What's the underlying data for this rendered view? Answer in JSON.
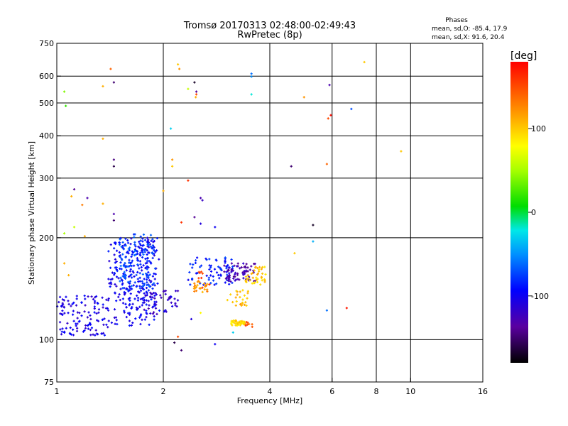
{
  "chart_data": {
    "type": "scatter",
    "title": "Tromsø 20170313 02:48:00-02:49:43",
    "subtitle": "RwPretec (8p)",
    "xlabel": "Frequency [MHz]",
    "ylabel": "Stationary phase Virtual Height [km]",
    "x_scale": "log",
    "y_scale": "log",
    "xlim": [
      1,
      16
    ],
    "ylim": [
      75,
      750
    ],
    "x_ticks": [
      1,
      2,
      4,
      6,
      8,
      10,
      16
    ],
    "x_tick_labels": [
      "1",
      "2",
      "4",
      "6",
      "8",
      "10",
      "16"
    ],
    "x_grid_lines": [
      2,
      4,
      6,
      8,
      10
    ],
    "y_ticks": [
      75,
      100,
      200,
      300,
      400,
      500,
      600,
      750
    ],
    "y_tick_labels": [
      "75",
      "100",
      "200",
      "300",
      "400",
      "500",
      "600",
      "750"
    ],
    "y_grid_lines": [
      100,
      200,
      300,
      400,
      500,
      600
    ],
    "grid": true,
    "legend": {
      "title": "Phases",
      "lines": [
        "mean, sd,O: -85.4, 17.9",
        "mean, sd,X:  91.6, 20.4"
      ],
      "position": "top-right"
    },
    "colorbar": {
      "label": "[deg]",
      "range": [
        -180,
        180
      ],
      "ticks": [
        100,
        0,
        -100
      ],
      "tick_labels": [
        "100",
        "0",
        "-100"
      ],
      "colormap": "rainbow"
    },
    "clusters": [
      {
        "xr": [
          1.0,
          1.4
        ],
        "yr": [
          103,
          135
        ],
        "phase": -105,
        "n": 120
      },
      {
        "xr": [
          1.4,
          1.95
        ],
        "yr": [
          110,
          200
        ],
        "phase": -100,
        "n": 260
      },
      {
        "xr": [
          1.5,
          1.9
        ],
        "yr": [
          140,
          205
        ],
        "phase": -75,
        "n": 130
      },
      {
        "xr": [
          1.7,
          2.2
        ],
        "yr": [
          118,
          140
        ],
        "phase": -115,
        "n": 50
      },
      {
        "xr": [
          2.35,
          3.2
        ],
        "yr": [
          145,
          175
        ],
        "phase": -85,
        "n": 70
      },
      {
        "xr": [
          2.95,
          3.65
        ],
        "yr": [
          148,
          168
        ],
        "phase": -130,
        "n": 70
      },
      {
        "xr": [
          3.4,
          3.9
        ],
        "yr": [
          145,
          165
        ],
        "phase": 100,
        "n": 40
      },
      {
        "xr": [
          2.4,
          2.7
        ],
        "yr": [
          138,
          150
        ],
        "phase": 120,
        "n": 25
      },
      {
        "xr": [
          3.0,
          3.5
        ],
        "yr": [
          126,
          140
        ],
        "phase": 105,
        "n": 25
      },
      {
        "xr": [
          3.1,
          3.4
        ],
        "yr": [
          110,
          114
        ],
        "phase": 95,
        "n": 45
      },
      {
        "xr": [
          3.4,
          3.6
        ],
        "yr": [
          109,
          113
        ],
        "phase": 150,
        "n": 8
      },
      {
        "xr": [
          2.5,
          2.8
        ],
        "yr": [
          140,
          160
        ],
        "phase": 160,
        "n": 8
      }
    ],
    "scattered_points": [
      {
        "x": 1.05,
        "y": 540,
        "phase": 40
      },
      {
        "x": 1.06,
        "y": 490,
        "phase": 20
      },
      {
        "x": 1.35,
        "y": 560,
        "phase": 110
      },
      {
        "x": 1.42,
        "y": 630,
        "phase": 140
      },
      {
        "x": 1.45,
        "y": 575,
        "phase": -150
      },
      {
        "x": 1.35,
        "y": 392,
        "phase": 110
      },
      {
        "x": 1.45,
        "y": 340,
        "phase": -145
      },
      {
        "x": 1.45,
        "y": 325,
        "phase": -160
      },
      {
        "x": 1.12,
        "y": 278,
        "phase": -140
      },
      {
        "x": 1.1,
        "y": 265,
        "phase": 110
      },
      {
        "x": 1.22,
        "y": 262,
        "phase": -130
      },
      {
        "x": 1.18,
        "y": 250,
        "phase": 130
      },
      {
        "x": 1.35,
        "y": 252,
        "phase": 110
      },
      {
        "x": 1.45,
        "y": 235,
        "phase": -130
      },
      {
        "x": 1.45,
        "y": 225,
        "phase": -150
      },
      {
        "x": 1.12,
        "y": 215,
        "phase": 60
      },
      {
        "x": 1.05,
        "y": 206,
        "phase": 50
      },
      {
        "x": 1.2,
        "y": 202,
        "phase": 110
      },
      {
        "x": 1.05,
        "y": 168,
        "phase": 110
      },
      {
        "x": 1.08,
        "y": 155,
        "phase": 110
      },
      {
        "x": 2.2,
        "y": 650,
        "phase": 100
      },
      {
        "x": 2.22,
        "y": 630,
        "phase": 120
      },
      {
        "x": 2.35,
        "y": 550,
        "phase": 60
      },
      {
        "x": 2.45,
        "y": 575,
        "phase": -170
      },
      {
        "x": 2.48,
        "y": 540,
        "phase": -140
      },
      {
        "x": 2.48,
        "y": 530,
        "phase": 150
      },
      {
        "x": 2.47,
        "y": 520,
        "phase": 110
      },
      {
        "x": 2.1,
        "y": 420,
        "phase": -30
      },
      {
        "x": 2.12,
        "y": 340,
        "phase": 120
      },
      {
        "x": 2.12,
        "y": 325,
        "phase": 100
      },
      {
        "x": 2.35,
        "y": 295,
        "phase": 160
      },
      {
        "x": 2.0,
        "y": 275,
        "phase": 110
      },
      {
        "x": 2.55,
        "y": 262,
        "phase": -130
      },
      {
        "x": 2.58,
        "y": 258,
        "phase": -120
      },
      {
        "x": 2.45,
        "y": 230,
        "phase": -140
      },
      {
        "x": 2.25,
        "y": 222,
        "phase": 160
      },
      {
        "x": 2.55,
        "y": 220,
        "phase": -110
      },
      {
        "x": 2.8,
        "y": 215,
        "phase": -100
      },
      {
        "x": 3.55,
        "y": 610,
        "phase": -60
      },
      {
        "x": 3.55,
        "y": 598,
        "phase": -50
      },
      {
        "x": 3.55,
        "y": 530,
        "phase": -20
      },
      {
        "x": 5.9,
        "y": 565,
        "phase": -130
      },
      {
        "x": 7.4,
        "y": 660,
        "phase": 100
      },
      {
        "x": 5.0,
        "y": 520,
        "phase": 120
      },
      {
        "x": 5.95,
        "y": 460,
        "phase": 175
      },
      {
        "x": 5.85,
        "y": 450,
        "phase": 150
      },
      {
        "x": 6.8,
        "y": 480,
        "phase": -70
      },
      {
        "x": 4.6,
        "y": 325,
        "phase": -150
      },
      {
        "x": 5.8,
        "y": 330,
        "phase": 140
      },
      {
        "x": 5.3,
        "y": 218,
        "phase": -170
      },
      {
        "x": 5.3,
        "y": 195,
        "phase": -40
      },
      {
        "x": 4.7,
        "y": 180,
        "phase": 100
      },
      {
        "x": 9.4,
        "y": 360,
        "phase": 100
      },
      {
        "x": 5.8,
        "y": 122,
        "phase": -60
      },
      {
        "x": 6.6,
        "y": 124,
        "phase": 170
      },
      {
        "x": 2.15,
        "y": 98,
        "phase": -160
      },
      {
        "x": 2.25,
        "y": 93,
        "phase": -150
      },
      {
        "x": 2.2,
        "y": 102,
        "phase": 150
      },
      {
        "x": 2.8,
        "y": 97,
        "phase": -100
      },
      {
        "x": 2.4,
        "y": 115,
        "phase": -110
      },
      {
        "x": 3.15,
        "y": 105,
        "phase": -30
      },
      {
        "x": 2.55,
        "y": 120,
        "phase": 80
      }
    ]
  }
}
